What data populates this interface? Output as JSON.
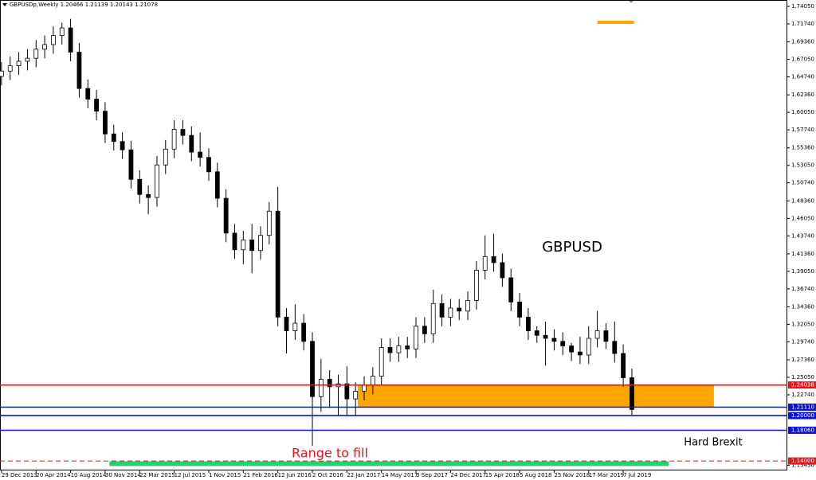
{
  "chart_data": {
    "type": "candlestick",
    "title": "GBPUSDp,Weekly  1.20466 1.21139 1.20143 1.21078",
    "x": [
      0,
      4,
      8,
      12,
      16,
      20,
      24,
      28,
      32,
      36,
      40,
      44,
      48,
      52,
      56,
      60,
      64,
      68,
      72,
      76,
      80,
      84,
      88,
      92,
      96,
      100,
      104,
      108,
      112,
      116,
      120,
      124,
      128,
      132,
      136,
      140,
      144,
      148,
      152,
      156,
      160,
      164,
      168,
      172,
      176,
      180,
      184,
      188,
      192,
      196,
      200,
      204,
      208,
      212,
      216,
      220,
      224,
      228,
      232,
      236,
      240,
      244,
      248,
      252,
      256,
      260,
      264,
      268,
      272,
      276,
      280,
      284,
      288,
      292
    ],
    "open": [
      1.648,
      1.655,
      1.662,
      1.668,
      1.672,
      1.684,
      1.69,
      1.702,
      1.712,
      1.68,
      1.632,
      1.618,
      1.602,
      1.572,
      1.562,
      1.551,
      1.512,
      1.492,
      1.488,
      1.531,
      1.552,
      1.578,
      1.57,
      1.548,
      1.541,
      1.522,
      1.487,
      1.441,
      1.419,
      1.432,
      1.418,
      1.438,
      1.47,
      1.33,
      1.312,
      1.322,
      1.298,
      1.225,
      1.248,
      1.238,
      1.242,
      1.222,
      1.232,
      1.24,
      1.252,
      1.29,
      1.283,
      1.292,
      1.288,
      1.318,
      1.308,
      1.348,
      1.33,
      1.342,
      1.338,
      1.352,
      1.392,
      1.41,
      1.402,
      1.382,
      1.35,
      1.33,
      1.312,
      1.306,
      1.302,
      1.298,
      1.292,
      1.284,
      1.28,
      1.302,
      1.312,
      1.298,
      1.282,
      1.25
    ],
    "high": [
      1.667,
      1.674,
      1.68,
      1.684,
      1.696,
      1.702,
      1.714,
      1.719,
      1.724,
      1.692,
      1.644,
      1.63,
      1.614,
      1.584,
      1.574,
      1.563,
      1.524,
      1.504,
      1.543,
      1.564,
      1.59,
      1.59,
      1.582,
      1.574,
      1.553,
      1.534,
      1.499,
      1.453,
      1.444,
      1.453,
      1.45,
      1.482,
      1.502,
      1.342,
      1.347,
      1.334,
      1.31,
      1.275,
      1.26,
      1.254,
      1.265,
      1.244,
      1.252,
      1.264,
      1.302,
      1.302,
      1.304,
      1.304,
      1.33,
      1.33,
      1.366,
      1.36,
      1.354,
      1.354,
      1.364,
      1.404,
      1.438,
      1.44,
      1.414,
      1.394,
      1.362,
      1.342,
      1.318,
      1.324,
      1.314,
      1.31,
      1.296,
      1.304,
      1.318,
      1.338,
      1.322,
      1.324,
      1.294,
      1.262
    ],
    "low": [
      1.636,
      1.643,
      1.65,
      1.656,
      1.66,
      1.672,
      1.678,
      1.69,
      1.668,
      1.62,
      1.606,
      1.59,
      1.56,
      1.55,
      1.539,
      1.5,
      1.48,
      1.466,
      1.476,
      1.519,
      1.54,
      1.558,
      1.536,
      1.529,
      1.51,
      1.475,
      1.429,
      1.407,
      1.4,
      1.388,
      1.406,
      1.426,
      1.318,
      1.282,
      1.3,
      1.286,
      1.16,
      1.205,
      1.21,
      1.2,
      1.199,
      1.199,
      1.22,
      1.228,
      1.24,
      1.271,
      1.271,
      1.276,
      1.276,
      1.296,
      1.296,
      1.318,
      1.318,
      1.326,
      1.326,
      1.34,
      1.38,
      1.39,
      1.37,
      1.338,
      1.318,
      1.3,
      1.296,
      1.266,
      1.286,
      1.28,
      1.272,
      1.268,
      1.268,
      1.29,
      1.288,
      1.27,
      1.238,
      1.201
    ],
    "close": [
      1.655,
      1.662,
      1.668,
      1.672,
      1.684,
      1.69,
      1.702,
      1.712,
      1.68,
      1.632,
      1.618,
      1.602,
      1.572,
      1.562,
      1.551,
      1.512,
      1.492,
      1.488,
      1.531,
      1.552,
      1.578,
      1.57,
      1.548,
      1.541,
      1.522,
      1.487,
      1.441,
      1.419,
      1.432,
      1.418,
      1.438,
      1.47,
      1.33,
      1.312,
      1.322,
      1.298,
      1.225,
      1.248,
      1.238,
      1.242,
      1.222,
      1.232,
      1.24,
      1.252,
      1.29,
      1.283,
      1.292,
      1.288,
      1.318,
      1.308,
      1.348,
      1.33,
      1.342,
      1.338,
      1.352,
      1.392,
      1.41,
      1.402,
      1.382,
      1.35,
      1.33,
      1.312,
      1.306,
      1.302,
      1.298,
      1.292,
      1.284,
      1.28,
      1.302,
      1.312,
      1.298,
      1.282,
      1.25,
      1.208
    ],
    "xlim": [
      -0.7,
      364
    ],
    "ylim": [
      1.1275,
      1.7489
    ],
    "xticks": [
      {
        "value": 0,
        "label": "29 Dec 2013"
      },
      {
        "value": 16,
        "label": "20 Apr 2014"
      },
      {
        "value": 32,
        "label": "10 Aug 2014"
      },
      {
        "value": 48,
        "label": "30 Nov 2014"
      },
      {
        "value": 64,
        "label": "22 Mar 2015"
      },
      {
        "value": 80,
        "label": "12 Jul 2015"
      },
      {
        "value": 96,
        "label": "1 Nov 2015"
      },
      {
        "value": 112,
        "label": "21 Feb 2016"
      },
      {
        "value": 128,
        "label": "12 Jun 2016"
      },
      {
        "value": 144,
        "label": "2 Oct 2016"
      },
      {
        "value": 160,
        "label": "22 Jan 2017"
      },
      {
        "value": 176,
        "label": "14 May 2017"
      },
      {
        "value": 192,
        "label": "3 Sep 2017"
      },
      {
        "value": 208,
        "label": "24 Dec 2017"
      },
      {
        "value": 224,
        "label": "15 Apr 2018"
      },
      {
        "value": 240,
        "label": "5 Aug 2018"
      },
      {
        "value": 256,
        "label": "25 Nov 2018"
      },
      {
        "value": 272,
        "label": "17 Mar 2019"
      },
      {
        "value": 288,
        "label": "7 Jul 2019"
      }
    ],
    "yticks": [
      {
        "value": 1.7405,
        "label": "1.74050"
      },
      {
        "value": 1.7174,
        "label": "1.71740"
      },
      {
        "value": 1.6936,
        "label": "1.69360"
      },
      {
        "value": 1.6705,
        "label": "1.67050"
      },
      {
        "value": 1.6474,
        "label": "1.64740"
      },
      {
        "value": 1.6236,
        "label": "1.62360"
      },
      {
        "value": 1.6005,
        "label": "1.60050"
      },
      {
        "value": 1.5774,
        "label": "1.57740"
      },
      {
        "value": 1.5536,
        "label": "1.55360"
      },
      {
        "value": 1.5305,
        "label": "1.53050"
      },
      {
        "value": 1.5074,
        "label": "1.50740"
      },
      {
        "value": 1.4836,
        "label": "1.48360"
      },
      {
        "value": 1.4605,
        "label": "1.46050"
      },
      {
        "value": 1.4374,
        "label": "1.43740"
      },
      {
        "value": 1.4136,
        "label": "1.41360"
      },
      {
        "value": 1.3905,
        "label": "1.39050"
      },
      {
        "value": 1.3674,
        "label": "1.36740"
      },
      {
        "value": 1.3436,
        "label": "1.34360"
      },
      {
        "value": 1.3205,
        "label": "1.32050"
      },
      {
        "value": 1.2974,
        "label": "1.29740"
      },
      {
        "value": 1.2736,
        "label": "1.27360"
      },
      {
        "value": 1.2505,
        "label": "1.25050"
      },
      {
        "value": 1.2274,
        "label": "1.22740"
      },
      {
        "value": 1.1343,
        "label": "1.13430"
      }
    ],
    "levels": [
      {
        "value": 1.24038,
        "label": "1.24038",
        "color": "#e8141e",
        "dashed": false
      },
      {
        "value": 1.2111,
        "label": "1.21110",
        "color": "#0a14d2",
        "dashed": false
      },
      {
        "value": 1.2,
        "label": "1.20000",
        "color": "#0a14d2",
        "dashed": false
      },
      {
        "value": 1.1806,
        "label": "1.18060",
        "color": "#0a14d2",
        "dashed": false
      },
      {
        "value": 1.14,
        "label": "1.14000",
        "color": "#e8141e",
        "dashed": true
      }
    ],
    "zone": {
      "x": [
        165,
        330
      ],
      "y": [
        1.2111,
        1.24038
      ],
      "color": "#ffa500"
    },
    "marker": {
      "x": [
        276,
        293
      ],
      "y": 1.7195,
      "color": "#ffa500"
    },
    "band": {
      "x": [
        50,
        309
      ],
      "y": 1.1365,
      "color": "#2ecc71"
    },
    "annotations": [
      "GBPUSD",
      "Range to fill",
      "Hard Brexit"
    ]
  }
}
